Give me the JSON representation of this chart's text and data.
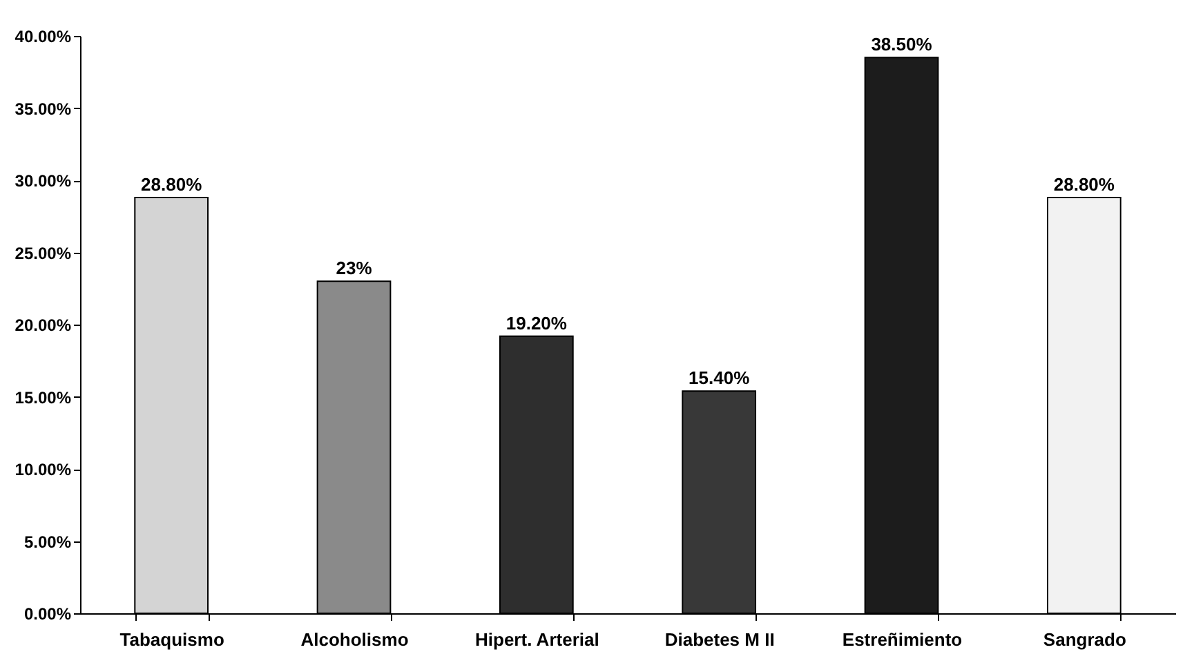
{
  "chart_data": {
    "type": "bar",
    "categories": [
      "Tabaquismo",
      "Alcoholismo",
      "Hipert. Arterial",
      "Diabetes M II",
      "Estreñimiento",
      "Sangrado"
    ],
    "values": [
      28.8,
      23,
      19.2,
      15.4,
      38.5,
      28.8
    ],
    "colors": [
      "#d4d4d4",
      "#8a8a8a",
      "#2e2e2e",
      "#383838",
      "#1c1c1c",
      "#f2f2f2"
    ],
    "value_labels": [
      "28.80%",
      "23%",
      "19.20%",
      "15.40%",
      "38.50%",
      "28.80%"
    ],
    "ylim": [
      0,
      40
    ],
    "yticks": [
      {
        "value": 0,
        "label": "0.00%"
      },
      {
        "value": 5,
        "label": "5.00%"
      },
      {
        "value": 10,
        "label": "10.00%"
      },
      {
        "value": 15,
        "label": "15.00%"
      },
      {
        "value": 20,
        "label": "20.00%"
      },
      {
        "value": 25,
        "label": "25.00%"
      },
      {
        "value": 30,
        "label": "30.00%"
      },
      {
        "value": 35,
        "label": "35.00%"
      },
      {
        "value": 40,
        "label": "40.00%"
      }
    ],
    "grid": false
  }
}
